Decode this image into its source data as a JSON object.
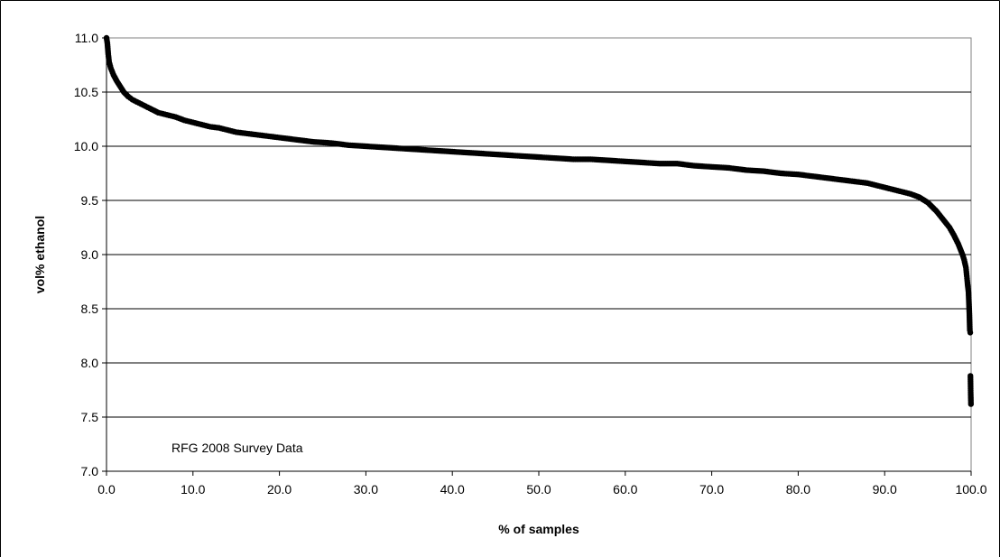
{
  "chart_data": {
    "type": "scatter",
    "title": "",
    "xlabel": "% of samples",
    "ylabel": "vol% ethanol",
    "xlim": [
      0,
      100
    ],
    "ylim": [
      7.0,
      11.0
    ],
    "x_ticks": [
      "0.0",
      "10.0",
      "20.0",
      "30.0",
      "40.0",
      "50.0",
      "60.0",
      "70.0",
      "80.0",
      "90.0",
      "100.0"
    ],
    "y_ticks": [
      "7.0",
      "7.5",
      "8.0",
      "8.5",
      "9.0",
      "9.5",
      "10.0",
      "10.5",
      "11.0"
    ],
    "grid": "horizontal",
    "legend": "none",
    "marker_color": "#000000",
    "annotation": "RFG 2008 Survey Data",
    "series": [
      {
        "points": [
          [
            0.0,
            11.0
          ],
          [
            0.1,
            10.95
          ],
          [
            0.2,
            10.85
          ],
          [
            0.3,
            10.78
          ],
          [
            0.5,
            10.72
          ],
          [
            0.8,
            10.66
          ],
          [
            1.2,
            10.6
          ],
          [
            1.6,
            10.55
          ],
          [
            2.0,
            10.5
          ],
          [
            2.5,
            10.46
          ],
          [
            3.0,
            10.43
          ],
          [
            3.5,
            10.41
          ],
          [
            4.0,
            10.39
          ],
          [
            4.5,
            10.37
          ],
          [
            5.0,
            10.35
          ],
          [
            6.0,
            10.31
          ],
          [
            7.0,
            10.29
          ],
          [
            8.0,
            10.27
          ],
          [
            9.0,
            10.24
          ],
          [
            10.0,
            10.22
          ],
          [
            11.0,
            10.2
          ],
          [
            12.0,
            10.18
          ],
          [
            13.0,
            10.17
          ],
          [
            14.0,
            10.15
          ],
          [
            15.0,
            10.13
          ],
          [
            16.0,
            10.12
          ],
          [
            17.0,
            10.11
          ],
          [
            18.0,
            10.1
          ],
          [
            19.0,
            10.09
          ],
          [
            20.0,
            10.08
          ],
          [
            22.0,
            10.06
          ],
          [
            24.0,
            10.04
          ],
          [
            26.0,
            10.03
          ],
          [
            28.0,
            10.01
          ],
          [
            30.0,
            10.0
          ],
          [
            32.0,
            9.99
          ],
          [
            34.0,
            9.98
          ],
          [
            36.0,
            9.97
          ],
          [
            38.0,
            9.96
          ],
          [
            40.0,
            9.95
          ],
          [
            42.0,
            9.94
          ],
          [
            44.0,
            9.93
          ],
          [
            46.0,
            9.92
          ],
          [
            48.0,
            9.91
          ],
          [
            50.0,
            9.9
          ],
          [
            52.0,
            9.89
          ],
          [
            54.0,
            9.88
          ],
          [
            56.0,
            9.88
          ],
          [
            58.0,
            9.87
          ],
          [
            60.0,
            9.86
          ],
          [
            62.0,
            9.85
          ],
          [
            64.0,
            9.84
          ],
          [
            66.0,
            9.84
          ],
          [
            68.0,
            9.82
          ],
          [
            70.0,
            9.81
          ],
          [
            72.0,
            9.8
          ],
          [
            74.0,
            9.78
          ],
          [
            76.0,
            9.77
          ],
          [
            78.0,
            9.75
          ],
          [
            80.0,
            9.74
          ],
          [
            82.0,
            9.72
          ],
          [
            84.0,
            9.7
          ],
          [
            86.0,
            9.68
          ],
          [
            87.0,
            9.67
          ],
          [
            88.0,
            9.66
          ],
          [
            89.0,
            9.64
          ],
          [
            90.0,
            9.62
          ],
          [
            91.0,
            9.6
          ],
          [
            92.0,
            9.58
          ],
          [
            93.0,
            9.56
          ],
          [
            94.0,
            9.53
          ],
          [
            95.0,
            9.48
          ],
          [
            96.0,
            9.4
          ],
          [
            96.5,
            9.35
          ],
          [
            97.0,
            9.3
          ],
          [
            97.5,
            9.25
          ],
          [
            98.0,
            9.18
          ],
          [
            98.5,
            9.1
          ],
          [
            99.0,
            9.0
          ],
          [
            99.2,
            8.95
          ],
          [
            99.4,
            8.88
          ],
          [
            99.5,
            8.8
          ],
          [
            99.6,
            8.72
          ],
          [
            99.7,
            8.65
          ],
          [
            99.75,
            8.55
          ],
          [
            99.8,
            8.45
          ],
          [
            99.85,
            8.3
          ],
          [
            99.9,
            8.28
          ],
          [
            99.92,
            7.88
          ],
          [
            99.95,
            7.73
          ],
          [
            99.98,
            7.62
          ]
        ]
      }
    ]
  }
}
